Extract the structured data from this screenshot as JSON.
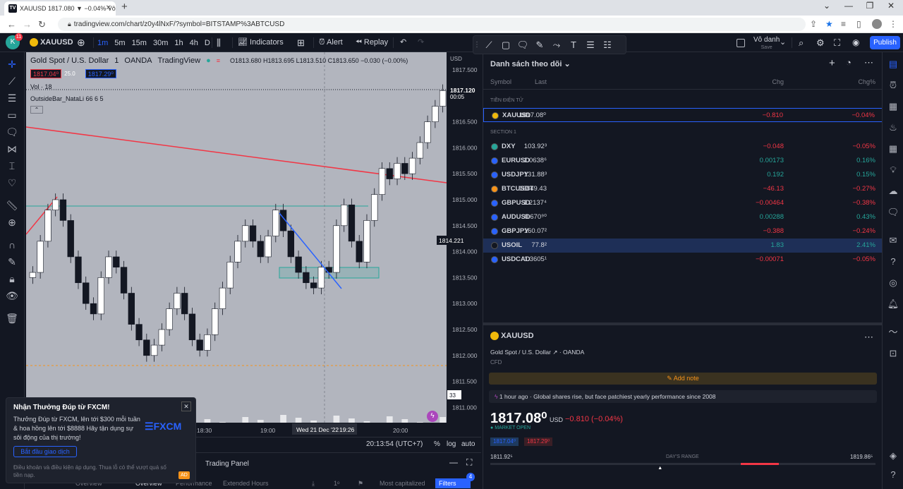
{
  "browser": {
    "tab_title": "XAUUSD 1817.080 ▼ −0.04% Vô",
    "url": "tradingview.com/chart/z0y4lNxF/?symbol=BITSTAMP%3ABTCUSD"
  },
  "toolbar": {
    "avatar_letter": "K",
    "notif_count": "11",
    "symbol": "XAUUSD",
    "intervals": [
      "1m",
      "5m",
      "15m",
      "30m",
      "1h",
      "4h",
      "D"
    ],
    "active_interval": "1m",
    "indicators": "Indicators",
    "alert": "Alert",
    "replay": "Replay",
    "user_name": "Vô danh",
    "save": "Save",
    "publish": "Publish"
  },
  "chart": {
    "title": "Gold Spot / U.S. Dollar",
    "interval": "1",
    "exchange": "OANDA",
    "source": "TradingView",
    "ohlc": "O1813.680 H1813.695 L1813.510 C1813.650 −0.030 (−0.00%)",
    "sell_price": "1817.04⁰",
    "spread": "25.0",
    "buy_price": "1817.29⁰",
    "vol_label": "Vol",
    "vol_value": "18",
    "indicator": "OutsideBar_NataLi 66 6 5",
    "currency": "USD",
    "price_ticks": [
      "1817.500",
      "1817.000",
      "1816.500",
      "1816.000",
      "1815.500",
      "1815.000",
      "1814.500",
      "1814.000",
      "1813.500",
      "1813.000",
      "1812.500",
      "1812.000",
      "1811.500",
      "1811.000"
    ],
    "last_price_label": "1817.120",
    "countdown": "00:05",
    "crosshair_price": "1814.221",
    "vol_axis_label": "33",
    "time_ticks": [
      "18:30",
      "19:00",
      "20:00"
    ],
    "crosshair_time": "Wed 21 Dec '22",
    "crosshair_time2": "19:26",
    "clock": "20:13:54 (UTC+7)",
    "pct": "%",
    "log": "log",
    "auto": "auto"
  },
  "popup": {
    "title": "Nhận Thưởng Đúp từ FXCM!",
    "body": "Thưởng Đúp từ FXCM, lên tới $300 mỗi tuần & hoa hồng lên tới $8888 Hãy tận dụng sự sôi động của thị trường!",
    "cta": "Bắt đầu giao dịch",
    "footer": "Điều khoản và điều kiện áp dụng. Thua lỗ có thể vượt quá số tiền nạp.",
    "brand": "FXCM",
    "ad": "AD"
  },
  "bottom_panel": {
    "trading_panel": "Trading Panel",
    "overview_a": "Overview",
    "tabs": [
      "Overview",
      "Performance",
      "Extended Hours"
    ],
    "sort": "Most capitalized",
    "filters": "Filters",
    "filters_count": "4",
    "one": "1ᵒ"
  },
  "watchlist": {
    "title": "Danh sách theo dõi",
    "col_symbol": "Symbol",
    "col_last": "Last",
    "col_chg": "Chg",
    "col_chgp": "Chg%",
    "section_crypto": "TIỀN ĐIỆN TỬ",
    "section_1": "SECTION 1",
    "crypto_rows": [
      {
        "symbol": "XAUUSD",
        "last": "1817.08⁰",
        "chg": "−0.810",
        "chgp": "−0.04%",
        "dir": "dn",
        "color": "#f0b90b"
      }
    ],
    "rows": [
      {
        "symbol": "DXY",
        "last": "103.92³",
        "chg": "−0.048",
        "chgp": "−0.05%",
        "dir": "dn",
        "color": "#26a69a"
      },
      {
        "symbol": "EURUSD",
        "last": "1.0638⁶",
        "chg": "0.00173",
        "chgp": "0.16%",
        "dir": "up",
        "color": "#2962ff"
      },
      {
        "symbol": "USDJPY",
        "last": "131.88³",
        "chg": "0.192",
        "chgp": "0.15%",
        "dir": "up",
        "color": "#2962ff"
      },
      {
        "symbol": "BTCUSDT",
        "last": "16849.43",
        "chg": "−46.13",
        "chgp": "−0.27%",
        "dir": "dn",
        "color": "#f7931a"
      },
      {
        "symbol": "GBPUSD",
        "last": "1.2137⁴",
        "chg": "−0.00464",
        "chgp": "−0.38%",
        "dir": "dn",
        "color": "#2962ff"
      },
      {
        "symbol": "AUDUSD",
        "last": "0.670⁹⁰",
        "chg": "0.00288",
        "chgp": "0.43%",
        "dir": "up",
        "color": "#2962ff"
      },
      {
        "symbol": "GBPJPY",
        "last": "160.07²",
        "chg": "−0.388",
        "chgp": "−0.24%",
        "dir": "dn",
        "color": "#2962ff"
      },
      {
        "symbol": "USOIL",
        "last": "77.8²",
        "chg": "1.83",
        "chgp": "2.41%",
        "dir": "up",
        "color": "#131722"
      },
      {
        "symbol": "USDCAD",
        "last": "1.3605¹",
        "chg": "−0.00071",
        "chgp": "−0.05%",
        "dir": "dn",
        "color": "#2962ff"
      }
    ]
  },
  "details": {
    "symbol": "XAUUSD",
    "name": "Gold Spot / U.S. Dollar",
    "exchange": "OANDA",
    "type": "CFD",
    "add_note": "Add note",
    "news": "1 hour ago · Global shares rise, but face patchiest yearly performance since 2008",
    "price": "1817.08⁰",
    "currency": "USD",
    "change": "−0.810 (−0.04%)",
    "market_status": "MARKET OPEN",
    "bid": "1817.04⁰",
    "ask": "1817.29⁰",
    "range_low": "1811.92⁵",
    "range_label": "DAY'S RANGE",
    "range_high": "1819.86⁵",
    "range_position": 0.44
  }
}
